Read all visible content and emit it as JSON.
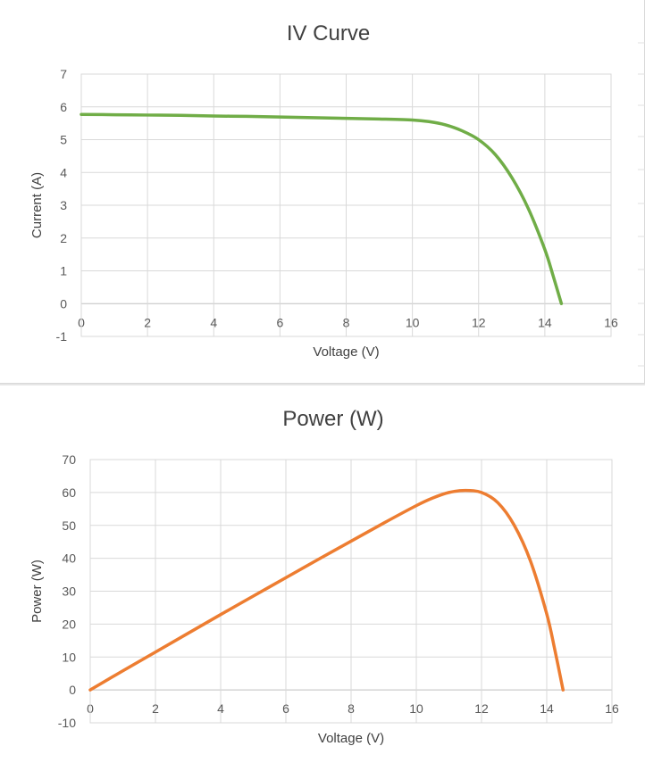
{
  "chart_data": [
    {
      "type": "line",
      "title": "IV Curve",
      "xlabel": "Voltage (V)",
      "ylabel": "Current (A)",
      "xlim": [
        0,
        16
      ],
      "ylim": [
        -1,
        7
      ],
      "x_ticks": [
        "0",
        "2",
        "4",
        "6",
        "8",
        "10",
        "12",
        "14",
        "16"
      ],
      "y_ticks": [
        "-1",
        "0",
        "1",
        "2",
        "3",
        "4",
        "5",
        "6",
        "7"
      ],
      "grid": true,
      "legend": false,
      "color": "#70ad47",
      "series": [
        {
          "x": [
            0,
            1,
            2,
            3,
            4,
            5,
            6,
            7,
            8,
            9,
            10,
            10.5,
            11,
            11.5,
            12,
            12.5,
            13,
            13.5,
            14,
            14.25,
            14.5
          ],
          "y": [
            5.77,
            5.76,
            5.75,
            5.74,
            5.72,
            5.71,
            5.69,
            5.67,
            5.65,
            5.63,
            5.6,
            5.55,
            5.45,
            5.27,
            5.0,
            4.55,
            3.85,
            2.9,
            1.65,
            0.85,
            0.0
          ]
        }
      ]
    },
    {
      "type": "line",
      "title": "Power (W)",
      "xlabel": "Voltage (V)",
      "ylabel": "Power (W)",
      "xlim": [
        0,
        16
      ],
      "ylim": [
        -10,
        70
      ],
      "x_ticks": [
        "0",
        "2",
        "4",
        "6",
        "8",
        "10",
        "12",
        "14",
        "16"
      ],
      "y_ticks": [
        "-10",
        "0",
        "10",
        "20",
        "30",
        "40",
        "50",
        "60",
        "70"
      ],
      "grid": true,
      "legend": false,
      "color": "#ed7d31",
      "series": [
        {
          "x": [
            0,
            1,
            2,
            3,
            4,
            5,
            6,
            7,
            8,
            9,
            10,
            10.5,
            11,
            11.5,
            12,
            12.5,
            13,
            13.5,
            14,
            14.25,
            14.5
          ],
          "y": [
            0,
            5.8,
            11.5,
            17.2,
            22.9,
            28.5,
            34.1,
            39.7,
            45.2,
            50.7,
            56.0,
            58.3,
            60.0,
            60.6,
            60.0,
            56.9,
            50.1,
            39.2,
            23.1,
            12.1,
            0.0
          ]
        }
      ]
    }
  ]
}
